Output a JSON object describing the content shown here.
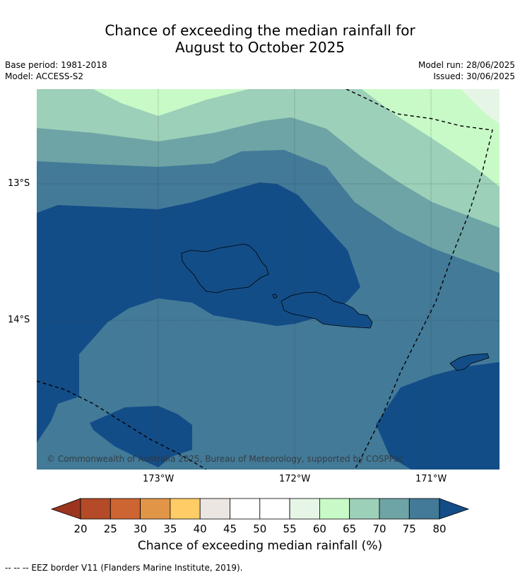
{
  "title_line1": "Chance of exceeding the median rainfall for",
  "title_line2": "August to October 2025",
  "base_period": "Base period: 1981-2018",
  "model": "Model: ACCESS-S2",
  "model_run": "Model run: 28/06/2025",
  "issued": "Issued: 30/06/2025",
  "map": {
    "lat_labels": [
      "13°S",
      "14°S"
    ],
    "lon_labels": [
      "173°W",
      "172°W",
      "171°W"
    ],
    "copyright": "© Commonwealth of Australia 2025, Bureau of Meteorology, supported by COSPPac",
    "colors": {
      "p40_45": "#ece6e2",
      "p55_60": "#e6f6e6",
      "p60_65": "#c8fac8",
      "p65_70": "#9dd0b9",
      "p70_75": "#6ea4a6",
      "p75_80": "#427a98",
      "p80_plus": "#134d88",
      "p35_40": "#ffcc66",
      "p30_35": "#e09547",
      "p25_30": "#cd6532",
      "p20_25": "#b44a28",
      "below_20": "#9b3520"
    }
  },
  "colorbar": {
    "ticks": [
      "20",
      "25",
      "30",
      "35",
      "40",
      "45",
      "50",
      "55",
      "60",
      "65",
      "70",
      "75",
      "80"
    ],
    "label": "Chance of exceeding median rainfall (%)"
  },
  "footnote": "--  --  -- EEZ border V11 (Flanders Marine Institute, 2019)."
}
